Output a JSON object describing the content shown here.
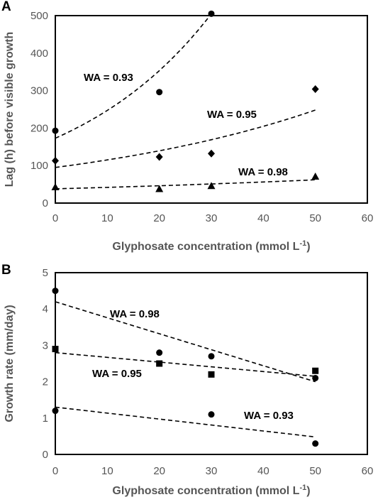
{
  "chart_data": [
    {
      "panel": "A",
      "type": "scatter",
      "xlabel": "Glyphosate concentration (mmol L",
      "xlabel_sup": "-1",
      "xlabel_close": ")",
      "ylabel": "Lag (h) before visible  growth",
      "xlim": [
        0,
        60
      ],
      "ylim": [
        0,
        500
      ],
      "xticks": [
        0,
        10,
        20,
        30,
        40,
        50,
        60
      ],
      "yticks": [
        0,
        100,
        200,
        300,
        400,
        500
      ],
      "grid": false,
      "series": [
        {
          "marker": "circle",
          "points": [
            [
              0,
              193
            ],
            [
              20,
              296
            ],
            [
              30,
              505
            ]
          ],
          "trend": {
            "kind": "exponential",
            "a": 173,
            "b": 0.0357,
            "x_range": [
              0,
              30
            ]
          },
          "label": "WA = 0.93"
        },
        {
          "marker": "diamond",
          "points": [
            [
              0,
              113
            ],
            [
              20,
              123
            ],
            [
              30,
              132
            ],
            [
              50,
              304
            ]
          ],
          "trend": {
            "kind": "exponential",
            "a": 95,
            "b": 0.0192,
            "x_range": [
              0,
              50
            ]
          },
          "label": "WA = 0.95"
        },
        {
          "marker": "triangle",
          "points": [
            [
              0,
              42
            ],
            [
              20,
              37
            ],
            [
              30,
              45
            ],
            [
              50,
              70
            ]
          ],
          "trend": {
            "kind": "exponential",
            "a": 38,
            "b": 0.0098,
            "x_range": [
              0,
              50
            ]
          },
          "label": "WA = 0.98"
        }
      ]
    },
    {
      "panel": "B",
      "type": "scatter",
      "xlabel": "Glyphosate concentration (mmol L",
      "xlabel_sup": "-1",
      "xlabel_close": ")",
      "ylabel": "Growth rate (mm/day)",
      "xlim": [
        0,
        60
      ],
      "ylim": [
        0,
        5
      ],
      "xticks": [
        0,
        10,
        20,
        30,
        40,
        50,
        60
      ],
      "yticks": [
        0,
        1,
        2,
        3,
        4,
        5
      ],
      "grid": false,
      "series": [
        {
          "marker": "circle",
          "points": [
            [
              0,
              4.5
            ],
            [
              20,
              2.8
            ],
            [
              30,
              2.7
            ],
            [
              50,
              2.1
            ]
          ],
          "trend": {
            "kind": "linear",
            "y0": 4.2,
            "y1": 2.0,
            "x_range": [
              0,
              50
            ]
          },
          "label": "WA = 0.98"
        },
        {
          "marker": "square",
          "points": [
            [
              0,
              2.9
            ],
            [
              20,
              2.5
            ],
            [
              30,
              2.2
            ],
            [
              50,
              2.3
            ]
          ],
          "trend": {
            "kind": "linear",
            "y0": 2.8,
            "y1": 2.15,
            "x_range": [
              0,
              50
            ]
          },
          "label": "WA = 0.95"
        },
        {
          "marker": "circle",
          "points": [
            [
              0,
              1.2
            ],
            [
              30,
              1.1
            ],
            [
              50,
              0.3
            ]
          ],
          "trend": {
            "kind": "linear",
            "y0": 1.3,
            "y1": 0.48,
            "x_range": [
              0,
              50
            ]
          },
          "label": "WA = 0.93"
        }
      ]
    }
  ]
}
